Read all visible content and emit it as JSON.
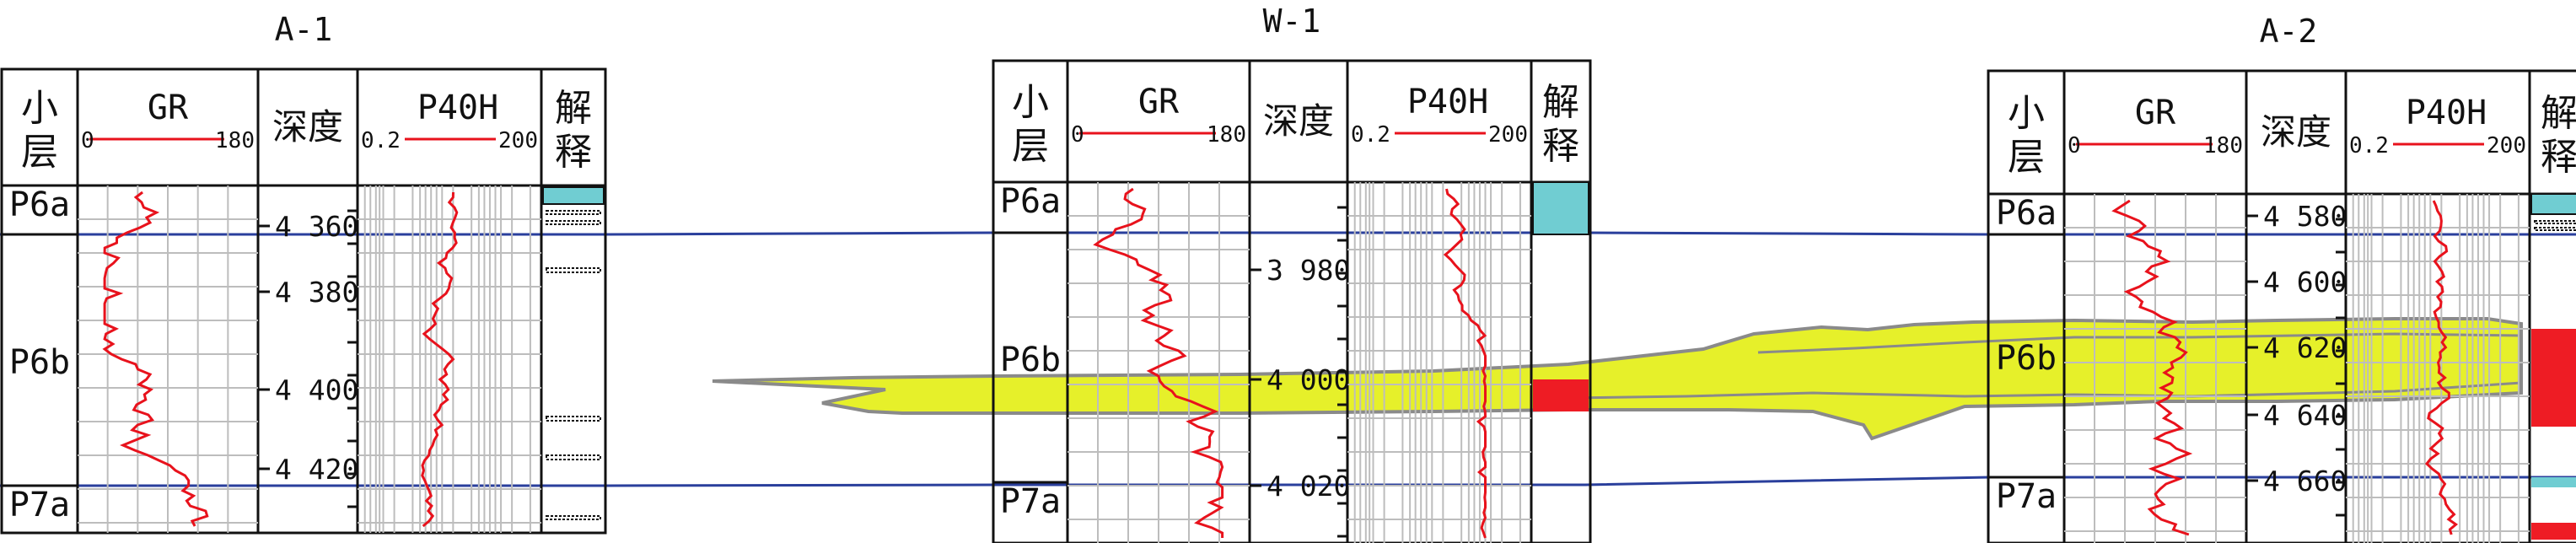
{
  "col_headers": {
    "zone": "小层",
    "gr": "GR",
    "depth": "深度",
    "res": "P40H",
    "interp": "解释"
  },
  "wells": [
    {
      "name": "A-1",
      "gr_min": "0",
      "gr_max": "180",
      "res_min": "0.2",
      "res_max": "200",
      "zones": [
        "P6a",
        "P6b",
        "P7a"
      ],
      "depth_ticks": [
        "4 360",
        "4 380",
        "4 400",
        "4 420"
      ]
    },
    {
      "name": "W-1",
      "gr_min": "0",
      "gr_max": "180",
      "res_min": "0.2",
      "res_max": "200",
      "zones": [
        "P6a",
        "P6b",
        "P7a"
      ],
      "depth_ticks": [
        "3 980",
        "4 000",
        "4 020"
      ]
    },
    {
      "name": "A-2",
      "gr_min": "0",
      "gr_max": "180",
      "res_min": "0.2",
      "res_max": "200",
      "zones": [
        "P6a",
        "P6b",
        "P7a"
      ],
      "depth_ticks": [
        "4 580",
        "4 600",
        "4 620",
        "4 640",
        "4 660"
      ]
    }
  ],
  "colors": {
    "log_curve": "#e8121c",
    "correlation_line": "#2a3f9c",
    "sand_body": "#e6f02a",
    "sand_outline": "#8a8a8a",
    "interp_cyan": "#70cdd2",
    "interp_red": "#ee1c24",
    "grid": "#bdbdbd"
  }
}
